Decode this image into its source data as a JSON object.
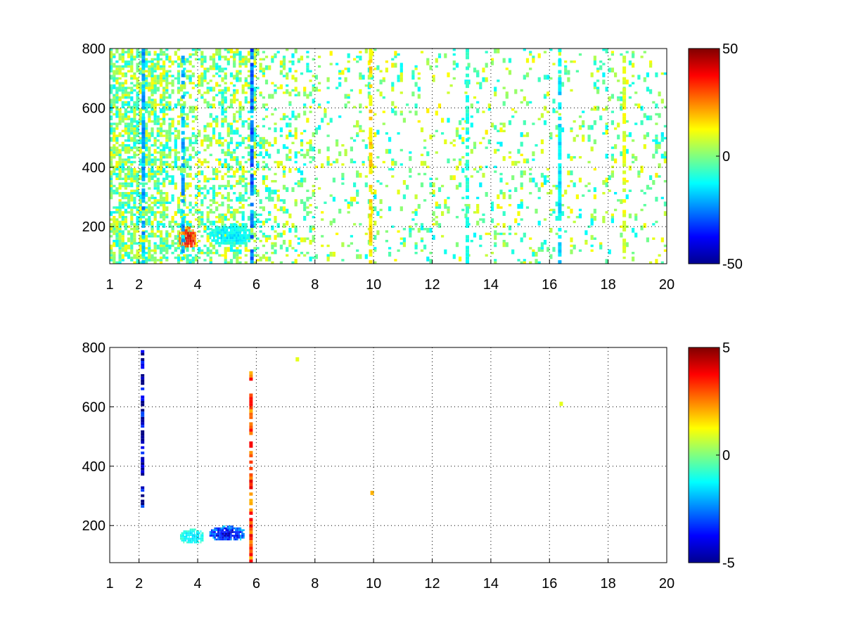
{
  "chart_data": [
    {
      "type": "heatmap",
      "title": "",
      "xlabel": "",
      "ylabel": "",
      "xlim": [
        1,
        20
      ],
      "ylim": [
        75,
        800
      ],
      "x_ticks": [
        1,
        2,
        4,
        6,
        8,
        10,
        12,
        14,
        16,
        18,
        20
      ],
      "y_ticks": [
        200,
        400,
        600,
        800
      ],
      "grid": true,
      "colormap": "jet",
      "color_range": [
        -50,
        50
      ],
      "colorbar_ticks": [
        50,
        0,
        -50
      ],
      "features": [
        {
          "region": "blob",
          "x": [
            3.35,
            3.95
          ],
          "y": [
            130,
            200
          ],
          "value": 40
        },
        {
          "region": "blob",
          "x": [
            4.4,
            5.8
          ],
          "y": [
            140,
            210
          ],
          "value": -15
        },
        {
          "region": "streak",
          "x": 2.15,
          "y": [
            75,
            800
          ],
          "value": -20
        },
        {
          "region": "streak",
          "x": 3.5,
          "y": [
            75,
            800
          ],
          "value": -20
        },
        {
          "region": "streak",
          "x": 5.85,
          "y": [
            75,
            800
          ],
          "value": -25
        },
        {
          "region": "streak",
          "x": 9.9,
          "y": [
            75,
            800
          ],
          "value": 15
        },
        {
          "region": "streak",
          "x": 13.2,
          "y": [
            75,
            800
          ],
          "value": -10
        },
        {
          "region": "streak",
          "x": 16.35,
          "y": [
            75,
            800
          ],
          "value": -15
        },
        {
          "region": "streak",
          "x": 18.55,
          "y": [
            75,
            800
          ],
          "value": 10
        }
      ],
      "background": "sparse scattered values near 0 between -15 and 15, density decreasing with x"
    },
    {
      "type": "heatmap",
      "title": "",
      "xlabel": "",
      "ylabel": "",
      "xlim": [
        1,
        20
      ],
      "ylim": [
        75,
        800
      ],
      "x_ticks": [
        1,
        2,
        4,
        6,
        8,
        10,
        12,
        14,
        16,
        18,
        20
      ],
      "y_ticks": [
        200,
        400,
        600,
        800
      ],
      "grid": true,
      "colormap": "jet",
      "color_range": [
        -5,
        5
      ],
      "colorbar_ticks": [
        5,
        0,
        -5
      ],
      "features": [
        {
          "region": "blob",
          "x": [
            3.4,
            4.2
          ],
          "y": [
            140,
            190
          ],
          "value": -1.5
        },
        {
          "region": "blob",
          "x": [
            4.4,
            5.6
          ],
          "y": [
            150,
            200
          ],
          "value": -4
        },
        {
          "region": "streak",
          "x": 2.12,
          "y": [
            260,
            800
          ],
          "value": -4.5
        },
        {
          "region": "streak",
          "x": 5.82,
          "y": [
            75,
            720
          ],
          "value": 3
        },
        {
          "region": "dot",
          "x": 9.95,
          "y": 310,
          "value": 2
        },
        {
          "region": "dot",
          "x": 16.4,
          "y": 610,
          "value": 1
        },
        {
          "region": "dot",
          "x": 7.4,
          "y": 760,
          "value": 1
        }
      ],
      "background": "mostly empty"
    }
  ]
}
